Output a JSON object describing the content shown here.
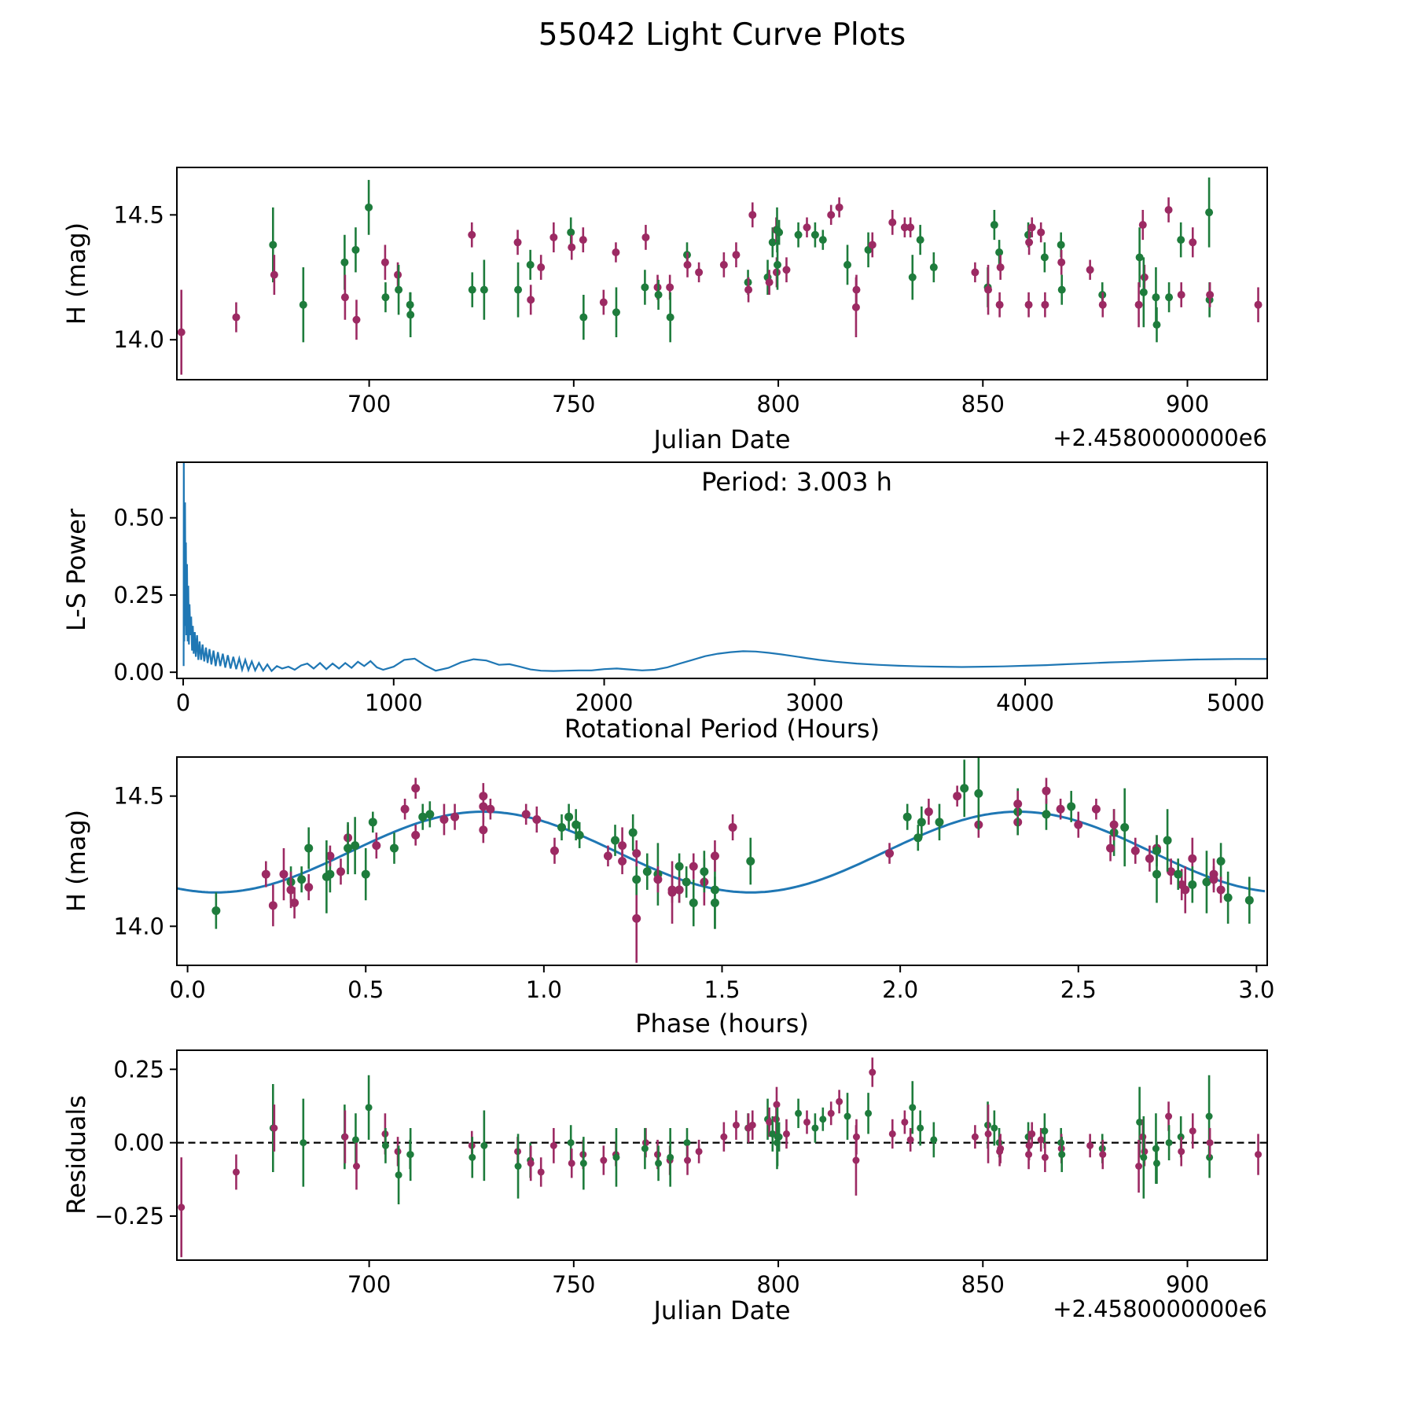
{
  "figure": {
    "title": "55042 Light Curve Plots",
    "background": "#ffffff",
    "series_colors": {
      "apparition_1": "#1e7c3c",
      "apparition_2": "#9c2a63"
    },
    "fit_line_color": "#1f77b4",
    "zero_line_color": "#000000"
  },
  "chart_data": {
    "type": "scatter",
    "title": "55042 Light Curve Plots",
    "points_format": [
      "julian_date_offset_2458000",
      "H_mag",
      "H_err",
      "phase_hours",
      "residual",
      "color_index_0green_1purple"
    ],
    "points": [
      [
        654.1,
        14.03,
        0.17,
        1.26,
        -0.22,
        1
      ],
      [
        667.5,
        14.09,
        0.06,
        0.3,
        -0.1,
        1
      ],
      [
        676.5,
        14.38,
        0.15,
        2.63,
        0.05,
        0
      ],
      [
        676.8,
        14.26,
        0.08,
        2.82,
        0.05,
        1
      ],
      [
        683.9,
        14.14,
        0.15,
        1.48,
        0.0,
        0
      ],
      [
        694.0,
        14.31,
        0.11,
        0.47,
        0.02,
        0
      ],
      [
        694.1,
        14.17,
        0.09,
        1.45,
        0.02,
        1
      ],
      [
        696.7,
        14.36,
        0.09,
        2.6,
        0.01,
        0
      ],
      [
        696.9,
        14.08,
        0.08,
        0.24,
        -0.08,
        1
      ],
      [
        699.9,
        14.53,
        0.11,
        2.18,
        0.12,
        0
      ],
      [
        703.9,
        14.31,
        0.07,
        1.22,
        0.03,
        1
      ],
      [
        704.0,
        14.17,
        0.06,
        0.29,
        -0.01,
        0
      ],
      [
        707.0,
        14.26,
        0.05,
        2.7,
        -0.03,
        1
      ],
      [
        707.2,
        14.2,
        0.1,
        0.5,
        -0.11,
        0
      ],
      [
        710.0,
        14.14,
        0.05,
        1.38,
        -0.04,
        0
      ],
      [
        710.1,
        14.1,
        0.09,
        2.98,
        -0.04,
        0
      ],
      [
        725.1,
        14.42,
        0.05,
        0.75,
        -0.01,
        1
      ],
      [
        725.2,
        14.2,
        0.07,
        0.4,
        -0.05,
        0
      ],
      [
        728.1,
        14.2,
        0.12,
        1.32,
        -0.01,
        0
      ],
      [
        736.3,
        14.39,
        0.05,
        2.22,
        -0.03,
        1
      ],
      [
        736.4,
        14.2,
        0.11,
        2.72,
        -0.08,
        0
      ],
      [
        739.4,
        14.3,
        0.06,
        0.58,
        -0.06,
        0
      ],
      [
        739.5,
        14.16,
        0.06,
        2.79,
        -0.07,
        1
      ],
      [
        742.0,
        14.29,
        0.05,
        1.03,
        -0.1,
        1
      ],
      [
        745.1,
        14.41,
        0.06,
        0.72,
        -0.01,
        1
      ],
      [
        749.3,
        14.43,
        0.06,
        2.41,
        0.0,
        0
      ],
      [
        749.5,
        14.37,
        0.05,
        0.83,
        -0.07,
        1
      ],
      [
        752.3,
        14.4,
        0.05,
        2.33,
        -0.04,
        1
      ],
      [
        752.4,
        14.09,
        0.09,
        1.42,
        -0.07,
        0
      ],
      [
        757.3,
        14.15,
        0.05,
        0.34,
        -0.06,
        1
      ],
      [
        760.3,
        14.35,
        0.04,
        0.64,
        -0.04,
        1
      ],
      [
        760.4,
        14.11,
        0.1,
        2.92,
        -0.05,
        0
      ],
      [
        767.6,
        14.41,
        0.05,
        0.98,
        0.0,
        1
      ],
      [
        767.4,
        14.21,
        0.07,
        1.29,
        -0.02,
        0
      ],
      [
        770.5,
        14.21,
        0.05,
        2.76,
        -0.04,
        1
      ],
      [
        770.7,
        14.18,
        0.06,
        1.26,
        -0.07,
        0
      ],
      [
        773.5,
        14.21,
        0.05,
        0.43,
        -0.06,
        1
      ],
      [
        773.6,
        14.09,
        0.1,
        1.48,
        -0.05,
        0
      ],
      [
        777.7,
        14.34,
        0.05,
        2.05,
        0.0,
        0
      ],
      [
        777.8,
        14.3,
        0.05,
        2.59,
        -0.06,
        1
      ],
      [
        780.6,
        14.27,
        0.04,
        1.18,
        -0.03,
        1
      ],
      [
        786.7,
        14.3,
        0.05,
        2.72,
        0.02,
        1
      ],
      [
        789.7,
        14.34,
        0.05,
        0.45,
        0.06,
        1
      ],
      [
        792.6,
        14.23,
        0.05,
        1.38,
        0.05,
        0
      ],
      [
        792.7,
        14.2,
        0.05,
        0.22,
        0.05,
        1
      ],
      [
        793.7,
        14.5,
        0.05,
        0.83,
        0.06,
        1
      ],
      [
        797.4,
        14.25,
        0.07,
        2.9,
        0.08,
        0
      ],
      [
        797.8,
        14.23,
        0.05,
        1.42,
        0.07,
        1
      ],
      [
        798.6,
        14.39,
        0.06,
        1.09,
        0.03,
        0
      ],
      [
        799.5,
        14.44,
        0.05,
        2.08,
        0.08,
        1
      ],
      [
        799.6,
        14.27,
        0.06,
        1.48,
        0.13,
        1
      ],
      [
        799.7,
        14.44,
        0.09,
        2.33,
        0.0,
        0
      ],
      [
        799.8,
        14.3,
        0.1,
        0.45,
        0.02,
        0
      ],
      [
        800.2,
        14.43,
        0.05,
        0.68,
        0.02,
        0
      ],
      [
        802.0,
        14.28,
        0.05,
        1.26,
        0.03,
        1
      ],
      [
        804.9,
        14.42,
        0.05,
        2.02,
        0.1,
        0
      ],
      [
        807.0,
        14.45,
        0.04,
        2.55,
        0.07,
        1
      ],
      [
        809.0,
        14.42,
        0.05,
        1.07,
        0.05,
        0
      ],
      [
        810.9,
        14.4,
        0.04,
        0.52,
        0.08,
        0
      ],
      [
        812.9,
        14.5,
        0.04,
        2.16,
        0.1,
        1
      ],
      [
        814.9,
        14.53,
        0.04,
        0.64,
        0.14,
        1
      ],
      [
        816.9,
        14.3,
        0.08,
        0.34,
        0.09,
        0
      ],
      [
        819.0,
        14.13,
        0.12,
        1.36,
        -0.06,
        1
      ],
      [
        819.1,
        14.2,
        0.06,
        2.88,
        0.02,
        1
      ],
      [
        822.0,
        14.36,
        0.07,
        1.25,
        0.1,
        0
      ],
      [
        823.0,
        14.38,
        0.05,
        1.53,
        0.24,
        1
      ],
      [
        827.9,
        14.47,
        0.05,
        2.33,
        0.03,
        1
      ],
      [
        830.9,
        14.45,
        0.04,
        0.61,
        0.07,
        1
      ],
      [
        832.3,
        14.45,
        0.04,
        0.85,
        0.01,
        1
      ],
      [
        832.8,
        14.25,
        0.09,
        1.58,
        0.12,
        0
      ],
      [
        834.7,
        14.4,
        0.06,
        2.06,
        0.05,
        0
      ],
      [
        838.0,
        14.29,
        0.06,
        2.72,
        0.01,
        0
      ],
      [
        848.1,
        14.27,
        0.04,
        0.4,
        0.02,
        1
      ],
      [
        851.2,
        14.21,
        0.08,
        1.45,
        0.06,
        0
      ],
      [
        851.3,
        14.2,
        0.1,
        0.27,
        0.03,
        1
      ],
      [
        852.8,
        14.46,
        0.06,
        2.48,
        0.05,
        0
      ],
      [
        854.0,
        14.35,
        0.05,
        1.1,
        0.0,
        0
      ],
      [
        854.3,
        14.29,
        0.05,
        2.66,
        -0.02,
        1
      ],
      [
        854.1,
        14.14,
        0.05,
        2.9,
        -0.03,
        1
      ],
      [
        861.1,
        14.42,
        0.05,
        0.66,
        0.02,
        0
      ],
      [
        862.0,
        14.45,
        0.04,
        2.45,
        0.03,
        1
      ],
      [
        861.3,
        14.39,
        0.05,
        2.5,
        -0.01,
        1
      ],
      [
        861.2,
        14.14,
        0.05,
        0.29,
        -0.04,
        1
      ],
      [
        864.2,
        14.43,
        0.04,
        0.95,
        0.01,
        1
      ],
      [
        865.1,
        14.33,
        0.06,
        1.2,
        0.04,
        0
      ],
      [
        865.2,
        14.14,
        0.05,
        1.36,
        -0.05,
        1
      ],
      [
        869.1,
        14.38,
        0.05,
        1.05,
        0.0,
        0
      ],
      [
        869.2,
        14.31,
        0.05,
        0.53,
        -0.02,
        1
      ],
      [
        869.3,
        14.2,
        0.06,
        2.78,
        -0.04,
        0
      ],
      [
        876.2,
        14.28,
        0.04,
        1.97,
        -0.01,
        1
      ],
      [
        879.2,
        14.18,
        0.05,
        0.32,
        -0.02,
        0
      ],
      [
        879.3,
        14.14,
        0.05,
        1.38,
        -0.04,
        1
      ],
      [
        888.3,
        14.33,
        0.12,
        2.75,
        0.07,
        0
      ],
      [
        889.1,
        14.46,
        0.06,
        0.83,
        0.02,
        1
      ],
      [
        889.5,
        14.25,
        0.05,
        1.22,
        -0.03,
        1
      ],
      [
        889.3,
        14.19,
        0.14,
        0.39,
        -0.05,
        0
      ],
      [
        888.1,
        14.14,
        0.09,
        2.8,
        -0.08,
        1
      ],
      [
        892.3,
        14.17,
        0.12,
        2.86,
        -0.02,
        0
      ],
      [
        892.5,
        14.06,
        0.07,
        0.08,
        -0.07,
        0
      ],
      [
        895.4,
        14.52,
        0.05,
        2.41,
        0.09,
        1
      ],
      [
        895.5,
        14.17,
        0.06,
        1.4,
        0.0,
        0
      ],
      [
        898.4,
        14.4,
        0.07,
        2.11,
        0.02,
        0
      ],
      [
        898.5,
        14.18,
        0.05,
        1.32,
        -0.03,
        1
      ],
      [
        901.3,
        14.39,
        0.06,
        2.6,
        0.04,
        1
      ],
      [
        905.3,
        14.51,
        0.14,
        2.22,
        0.09,
        0
      ],
      [
        905.4,
        14.16,
        0.07,
        2.82,
        -0.05,
        0
      ],
      [
        905.5,
        14.18,
        0.05,
        2.88,
        0.0,
        1
      ],
      [
        917.3,
        14.14,
        0.07,
        0.29,
        -0.04,
        1
      ]
    ],
    "model_fit": {
      "mean_mag": 14.285,
      "amplitude_mag": 0.155,
      "sine_period_hours": 1.5015,
      "peak_phase_hours": 0.83,
      "rotation_period_hours": 3.003
    },
    "periodogram": {
      "x": [
        2,
        3,
        4,
        5,
        7,
        9,
        11,
        13,
        15,
        18,
        21,
        24,
        27,
        30,
        34,
        38,
        42,
        46,
        50,
        55,
        60,
        66,
        72,
        78,
        85,
        92,
        100,
        108,
        116,
        125,
        134,
        144,
        154,
        165,
        176,
        188,
        200,
        212,
        225,
        238,
        252,
        266,
        280,
        295,
        310,
        326,
        342,
        360,
        380,
        400,
        420,
        445,
        470,
        500,
        530,
        560,
        590,
        620,
        650,
        680,
        710,
        740,
        770,
        800,
        830,
        860,
        890,
        920,
        950,
        1000,
        1050,
        1100,
        1150,
        1200,
        1260,
        1320,
        1380,
        1440,
        1500,
        1550,
        1600,
        1650,
        1700,
        1760,
        1820,
        1880,
        1940,
        2000,
        2060,
        2120,
        2180,
        2240,
        2300,
        2360,
        2420,
        2480,
        2540,
        2600,
        2660,
        2720,
        2780,
        2840,
        2900,
        2960,
        3020,
        3100,
        3200,
        3300,
        3400,
        3500,
        3600,
        3700,
        3800,
        3900,
        4000,
        4100,
        4200,
        4300,
        4400,
        4500,
        4600,
        4700,
        4800,
        4900,
        5000,
        5150
      ],
      "power": [
        0.02,
        0.72,
        0.4,
        0.1,
        0.3,
        0.55,
        0.15,
        0.42,
        0.12,
        0.35,
        0.1,
        0.28,
        0.09,
        0.22,
        0.12,
        0.18,
        0.07,
        0.15,
        0.06,
        0.13,
        0.05,
        0.12,
        0.04,
        0.1,
        0.04,
        0.09,
        0.035,
        0.08,
        0.03,
        0.075,
        0.025,
        0.07,
        0.02,
        0.065,
        0.02,
        0.06,
        0.015,
        0.055,
        0.012,
        0.05,
        0.01,
        0.045,
        0.008,
        0.04,
        0.007,
        0.035,
        0.006,
        0.03,
        0.005,
        0.025,
        0.004,
        0.02,
        0.012,
        0.018,
        0.008,
        0.022,
        0.028,
        0.012,
        0.03,
        0.01,
        0.028,
        0.012,
        0.03,
        0.014,
        0.034,
        0.02,
        0.036,
        0.016,
        0.008,
        0.018,
        0.04,
        0.044,
        0.022,
        0.005,
        0.014,
        0.032,
        0.042,
        0.038,
        0.024,
        0.026,
        0.018,
        0.009,
        0.005,
        0.004,
        0.005,
        0.006,
        0.006,
        0.01,
        0.012,
        0.009,
        0.006,
        0.008,
        0.016,
        0.028,
        0.04,
        0.052,
        0.06,
        0.065,
        0.068,
        0.067,
        0.063,
        0.058,
        0.052,
        0.046,
        0.04,
        0.034,
        0.028,
        0.024,
        0.021,
        0.019,
        0.018,
        0.017,
        0.018,
        0.019,
        0.021,
        0.023,
        0.026,
        0.029,
        0.032,
        0.034,
        0.037,
        0.039,
        0.041,
        0.042,
        0.043,
        0.043
      ]
    },
    "panels": [
      {
        "id": "lc",
        "ylabel": "H (mag)",
        "xlabel": "Julian Date",
        "offset_text": "+2.4580000000e6",
        "xlim": [
          653,
          919.5
        ],
        "ylim": [
          13.84,
          14.69
        ],
        "xticks": [
          {
            "v": 700,
            "label": "700"
          },
          {
            "v": 750,
            "label": "750"
          },
          {
            "v": 800,
            "label": "800"
          },
          {
            "v": 850,
            "label": "850"
          },
          {
            "v": 900,
            "label": "900"
          }
        ],
        "yticks": [
          {
            "v": 14.0,
            "label": "14.0"
          },
          {
            "v": 14.5,
            "label": "14.5"
          }
        ]
      },
      {
        "id": "periodogram",
        "ylabel": "L-S Power",
        "xlabel": "Rotational Period (Hours)",
        "annotation": "Period: 3.003 h",
        "xlim": [
          -30,
          5150
        ],
        "ylim": [
          -0.02,
          0.68
        ],
        "xticks": [
          {
            "v": 0,
            "label": "0"
          },
          {
            "v": 1000,
            "label": "1000"
          },
          {
            "v": 2000,
            "label": "2000"
          },
          {
            "v": 3000,
            "label": "3000"
          },
          {
            "v": 4000,
            "label": "4000"
          },
          {
            "v": 5000,
            "label": "5000"
          }
        ],
        "yticks": [
          {
            "v": 0.0,
            "label": "0.00"
          },
          {
            "v": 0.25,
            "label": "0.25"
          },
          {
            "v": 0.5,
            "label": "0.50"
          }
        ]
      },
      {
        "id": "phased",
        "ylabel": "H (mag)",
        "xlabel": "Phase (hours)",
        "xlim": [
          -0.03,
          3.03
        ],
        "ylim": [
          13.85,
          14.65
        ],
        "xticks": [
          {
            "v": 0.0,
            "label": "0.0"
          },
          {
            "v": 0.5,
            "label": "0.5"
          },
          {
            "v": 1.0,
            "label": "1.0"
          },
          {
            "v": 1.5,
            "label": "1.5"
          },
          {
            "v": 2.0,
            "label": "2.0"
          },
          {
            "v": 2.5,
            "label": "2.5"
          },
          {
            "v": 3.0,
            "label": "3.0"
          }
        ],
        "yticks": [
          {
            "v": 14.0,
            "label": "14.0"
          },
          {
            "v": 14.5,
            "label": "14.5"
          }
        ]
      },
      {
        "id": "residuals",
        "ylabel": "Residuals",
        "xlabel": "Julian Date",
        "offset_text": "+2.4580000000e6",
        "xlim": [
          653,
          919.5
        ],
        "ylim": [
          -0.4,
          0.315
        ],
        "xticks": [
          {
            "v": 700,
            "label": "700"
          },
          {
            "v": 750,
            "label": "750"
          },
          {
            "v": 800,
            "label": "800"
          },
          {
            "v": 850,
            "label": "850"
          },
          {
            "v": 900,
            "label": "900"
          }
        ],
        "yticks": [
          {
            "v": -0.25,
            "label": "−0.25"
          },
          {
            "v": 0.0,
            "label": "0.00"
          },
          {
            "v": 0.25,
            "label": "0.25"
          }
        ]
      }
    ]
  }
}
